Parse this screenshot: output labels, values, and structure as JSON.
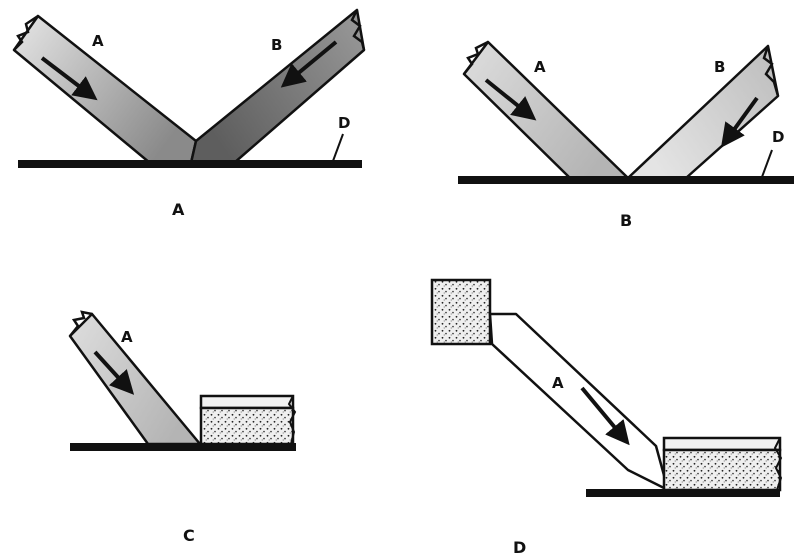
{
  "panels": [
    {
      "id": "A",
      "caption": "A",
      "labels": [
        "A",
        "B",
        "D"
      ]
    },
    {
      "id": "B",
      "caption": "B",
      "labels": [
        "A",
        "B",
        "D"
      ]
    },
    {
      "id": "C",
      "caption": "C",
      "labels": [
        "A"
      ]
    },
    {
      "id": "D",
      "caption": "D",
      "labels": [
        "A"
      ]
    }
  ],
  "colors": {
    "ink": "#111111",
    "shade_light": "#d6d6d6",
    "shade_dark": "#8e8e8e",
    "background": "#ffffff"
  }
}
